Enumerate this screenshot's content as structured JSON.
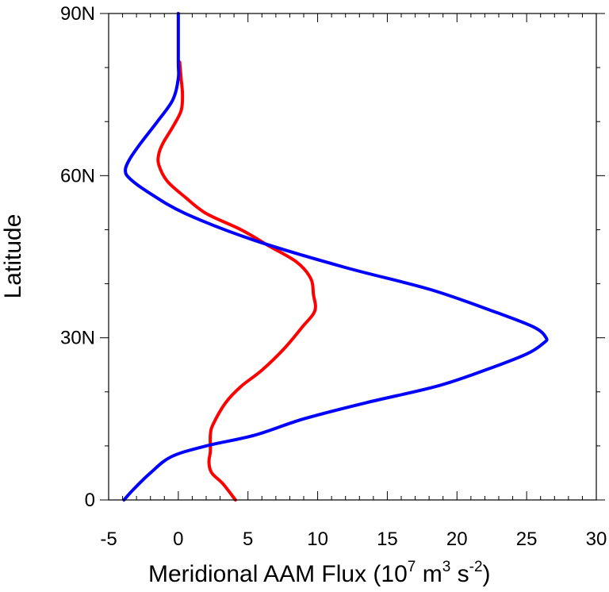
{
  "chart_data": {
    "type": "line",
    "title": "",
    "xlabel": {
      "main": "Meridional AAM Flux (10",
      "exp1": "7",
      "unit1": " m",
      "exp2": "3",
      "unit2": " s",
      "exp3": "-2",
      "close": ")"
    },
    "ylabel": "Latitude",
    "xlim": [
      -5,
      30
    ],
    "ylim": [
      0,
      90
    ],
    "xticks": [
      {
        "value": -5,
        "label": "-5"
      },
      {
        "value": 0,
        "label": "0"
      },
      {
        "value": 5,
        "label": "5"
      },
      {
        "value": 10,
        "label": "10"
      },
      {
        "value": 15,
        "label": "15"
      },
      {
        "value": 20,
        "label": "20"
      },
      {
        "value": 25,
        "label": "25"
      },
      {
        "value": 30,
        "label": "30"
      }
    ],
    "yticks": [
      {
        "value": 0,
        "label": "0"
      },
      {
        "value": 30,
        "label": "30N"
      },
      {
        "value": 60,
        "label": "60N"
      },
      {
        "value": 90,
        "label": "90N"
      }
    ],
    "grid": false,
    "series": [
      {
        "color": "#ff0000",
        "points": [
          [
            4.1,
            0
          ],
          [
            3.2,
            3
          ],
          [
            2.4,
            5
          ],
          [
            2.2,
            7
          ],
          [
            2.3,
            9
          ],
          [
            2.3,
            12
          ],
          [
            2.5,
            14
          ],
          [
            3.4,
            18
          ],
          [
            4.5,
            21
          ],
          [
            6.0,
            24
          ],
          [
            7.6,
            28
          ],
          [
            8.9,
            32
          ],
          [
            9.8,
            35
          ],
          [
            9.7,
            38
          ],
          [
            9.5,
            41
          ],
          [
            8.5,
            44
          ],
          [
            6.5,
            47
          ],
          [
            4.5,
            50
          ],
          [
            2.0,
            53
          ],
          [
            0.5,
            56
          ],
          [
            -0.8,
            59
          ],
          [
            -1.4,
            62
          ],
          [
            -1.4,
            64
          ],
          [
            -1.1,
            66
          ],
          [
            -0.4,
            69
          ],
          [
            0.2,
            72
          ],
          [
            0.3,
            75
          ],
          [
            0.2,
            78
          ],
          [
            0.1,
            81
          ]
        ]
      },
      {
        "color": "#0000ff",
        "points": [
          [
            -3.9,
            0
          ],
          [
            -3.2,
            2
          ],
          [
            -2.0,
            5
          ],
          [
            -0.5,
            8
          ],
          [
            2.0,
            10
          ],
          [
            5.5,
            12
          ],
          [
            9.0,
            15
          ],
          [
            13.5,
            18
          ],
          [
            18.5,
            21
          ],
          [
            22.0,
            24
          ],
          [
            25.0,
            27
          ],
          [
            26.2,
            29
          ],
          [
            26.4,
            30
          ],
          [
            25.5,
            32
          ],
          [
            22.5,
            35
          ],
          [
            18.0,
            39
          ],
          [
            12.0,
            43
          ],
          [
            5.5,
            48
          ],
          [
            0.5,
            53
          ],
          [
            -2.2,
            57
          ],
          [
            -3.5,
            59.5
          ],
          [
            -3.8,
            61
          ],
          [
            -3.5,
            63
          ],
          [
            -2.7,
            66
          ],
          [
            -1.5,
            70
          ],
          [
            -0.4,
            74
          ],
          [
            0.0,
            78
          ],
          [
            0.0,
            81
          ],
          [
            0.0,
            90
          ]
        ]
      }
    ]
  }
}
